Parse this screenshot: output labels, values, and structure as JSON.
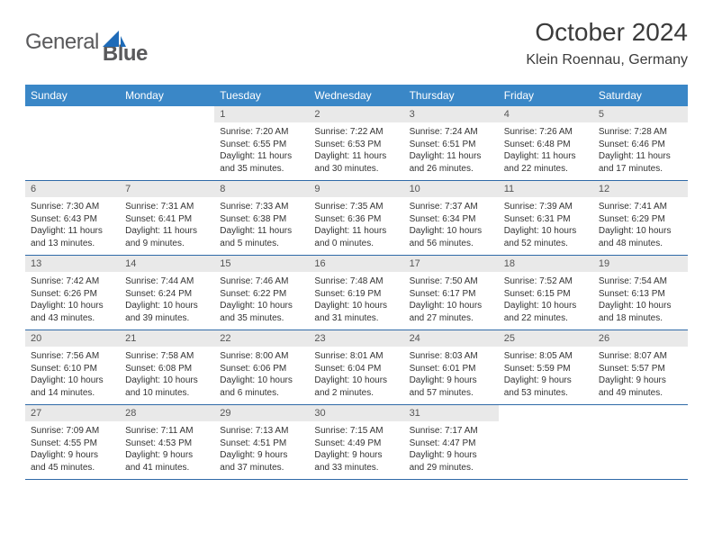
{
  "brand": {
    "part1": "General",
    "part2": "Blue",
    "logo_color": "#1e6bb8"
  },
  "title": "October 2024",
  "location": "Klein Roennau, Germany",
  "colors": {
    "header_bg": "#3a87c7",
    "header_text": "#ffffff",
    "daynum_bg": "#e9e9e9",
    "rule": "#2f6aa8",
    "text": "#333333",
    "title_text": "#3b3b3b"
  },
  "fonts": {
    "title_size": 28,
    "location_size": 16,
    "dayhead_size": 12,
    "daynum_size": 11,
    "body_size": 10
  },
  "day_headers": [
    "Sunday",
    "Monday",
    "Tuesday",
    "Wednesday",
    "Thursday",
    "Friday",
    "Saturday"
  ],
  "weeks": [
    [
      null,
      null,
      {
        "num": "1",
        "sunrise": "7:20 AM",
        "sunset": "6:55 PM",
        "dl": "11 hours and 35 minutes."
      },
      {
        "num": "2",
        "sunrise": "7:22 AM",
        "sunset": "6:53 PM",
        "dl": "11 hours and 30 minutes."
      },
      {
        "num": "3",
        "sunrise": "7:24 AM",
        "sunset": "6:51 PM",
        "dl": "11 hours and 26 minutes."
      },
      {
        "num": "4",
        "sunrise": "7:26 AM",
        "sunset": "6:48 PM",
        "dl": "11 hours and 22 minutes."
      },
      {
        "num": "5",
        "sunrise": "7:28 AM",
        "sunset": "6:46 PM",
        "dl": "11 hours and 17 minutes."
      }
    ],
    [
      {
        "num": "6",
        "sunrise": "7:30 AM",
        "sunset": "6:43 PM",
        "dl": "11 hours and 13 minutes."
      },
      {
        "num": "7",
        "sunrise": "7:31 AM",
        "sunset": "6:41 PM",
        "dl": "11 hours and 9 minutes."
      },
      {
        "num": "8",
        "sunrise": "7:33 AM",
        "sunset": "6:38 PM",
        "dl": "11 hours and 5 minutes."
      },
      {
        "num": "9",
        "sunrise": "7:35 AM",
        "sunset": "6:36 PM",
        "dl": "11 hours and 0 minutes."
      },
      {
        "num": "10",
        "sunrise": "7:37 AM",
        "sunset": "6:34 PM",
        "dl": "10 hours and 56 minutes."
      },
      {
        "num": "11",
        "sunrise": "7:39 AM",
        "sunset": "6:31 PM",
        "dl": "10 hours and 52 minutes."
      },
      {
        "num": "12",
        "sunrise": "7:41 AM",
        "sunset": "6:29 PM",
        "dl": "10 hours and 48 minutes."
      }
    ],
    [
      {
        "num": "13",
        "sunrise": "7:42 AM",
        "sunset": "6:26 PM",
        "dl": "10 hours and 43 minutes."
      },
      {
        "num": "14",
        "sunrise": "7:44 AM",
        "sunset": "6:24 PM",
        "dl": "10 hours and 39 minutes."
      },
      {
        "num": "15",
        "sunrise": "7:46 AM",
        "sunset": "6:22 PM",
        "dl": "10 hours and 35 minutes."
      },
      {
        "num": "16",
        "sunrise": "7:48 AM",
        "sunset": "6:19 PM",
        "dl": "10 hours and 31 minutes."
      },
      {
        "num": "17",
        "sunrise": "7:50 AM",
        "sunset": "6:17 PM",
        "dl": "10 hours and 27 minutes."
      },
      {
        "num": "18",
        "sunrise": "7:52 AM",
        "sunset": "6:15 PM",
        "dl": "10 hours and 22 minutes."
      },
      {
        "num": "19",
        "sunrise": "7:54 AM",
        "sunset": "6:13 PM",
        "dl": "10 hours and 18 minutes."
      }
    ],
    [
      {
        "num": "20",
        "sunrise": "7:56 AM",
        "sunset": "6:10 PM",
        "dl": "10 hours and 14 minutes."
      },
      {
        "num": "21",
        "sunrise": "7:58 AM",
        "sunset": "6:08 PM",
        "dl": "10 hours and 10 minutes."
      },
      {
        "num": "22",
        "sunrise": "8:00 AM",
        "sunset": "6:06 PM",
        "dl": "10 hours and 6 minutes."
      },
      {
        "num": "23",
        "sunrise": "8:01 AM",
        "sunset": "6:04 PM",
        "dl": "10 hours and 2 minutes."
      },
      {
        "num": "24",
        "sunrise": "8:03 AM",
        "sunset": "6:01 PM",
        "dl": "9 hours and 57 minutes."
      },
      {
        "num": "25",
        "sunrise": "8:05 AM",
        "sunset": "5:59 PM",
        "dl": "9 hours and 53 minutes."
      },
      {
        "num": "26",
        "sunrise": "8:07 AM",
        "sunset": "5:57 PM",
        "dl": "9 hours and 49 minutes."
      }
    ],
    [
      {
        "num": "27",
        "sunrise": "7:09 AM",
        "sunset": "4:55 PM",
        "dl": "9 hours and 45 minutes."
      },
      {
        "num": "28",
        "sunrise": "7:11 AM",
        "sunset": "4:53 PM",
        "dl": "9 hours and 41 minutes."
      },
      {
        "num": "29",
        "sunrise": "7:13 AM",
        "sunset": "4:51 PM",
        "dl": "9 hours and 37 minutes."
      },
      {
        "num": "30",
        "sunrise": "7:15 AM",
        "sunset": "4:49 PM",
        "dl": "9 hours and 33 minutes."
      },
      {
        "num": "31",
        "sunrise": "7:17 AM",
        "sunset": "4:47 PM",
        "dl": "9 hours and 29 minutes."
      },
      null,
      null
    ]
  ],
  "labels": {
    "sunrise": "Sunrise:",
    "sunset": "Sunset:",
    "daylight": "Daylight:"
  }
}
